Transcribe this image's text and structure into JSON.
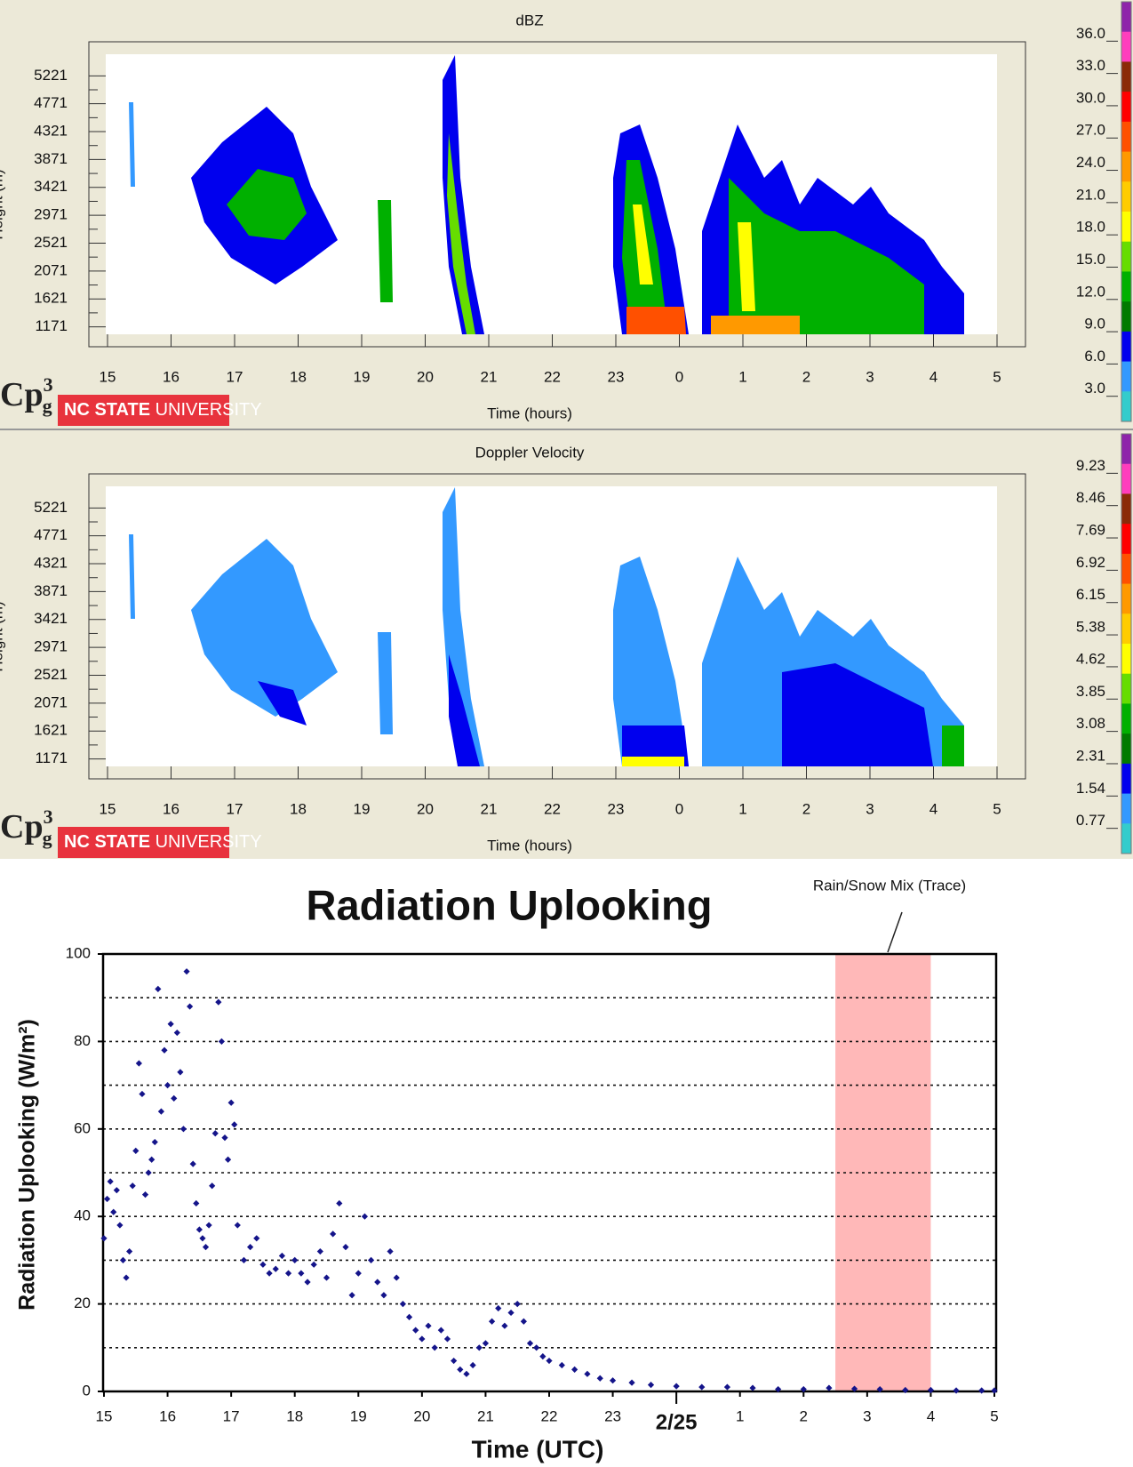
{
  "chart_data": [
    {
      "type": "heatmap",
      "title": "dBZ",
      "xlabel": "Time (hours)",
      "ylabel": "Height (m)",
      "xlim": [
        15,
        29
      ],
      "xticks": [
        15,
        16,
        17,
        18,
        19,
        20,
        21,
        22,
        23,
        {
          "value": 24,
          "label": "0"
        },
        {
          "value": 25,
          "label": "1"
        },
        {
          "value": 26,
          "label": "2"
        },
        {
          "value": 27,
          "label": "3"
        },
        {
          "value": 28,
          "label": "4"
        },
        {
          "value": 29,
          "label": "5"
        }
      ],
      "ylim": [
        1050,
        5570
      ],
      "yticks": [
        1171,
        1621,
        2071,
        2521,
        2971,
        3421,
        3871,
        4321,
        4771,
        5221
      ],
      "colorbar": {
        "clim": [
          0,
          39
        ],
        "ticks": [
          {
            "value": 36,
            "label": "36.0"
          },
          {
            "value": 33,
            "label": "33.0"
          },
          {
            "value": 30,
            "label": "30.0"
          },
          {
            "value": 27,
            "label": "27.0"
          },
          {
            "value": 24,
            "label": "24.0"
          },
          {
            "value": 21,
            "label": "21.0"
          },
          {
            "value": 18,
            "label": "18.0"
          },
          {
            "value": 15,
            "label": "15.0"
          },
          {
            "value": 12,
            "label": "12.0"
          },
          {
            "value": 9,
            "label": "9.0"
          },
          {
            "value": 6,
            "label": "6.0"
          },
          {
            "value": 3,
            "label": "3.0"
          }
        ],
        "colors": [
          "#8e24aa",
          "#ff3dbd",
          "#8b2a08",
          "#ff0000",
          "#ff5000",
          "#ff9900",
          "#ffcc00",
          "#ffff00",
          "#66dd00",
          "#00b000",
          "#007a00",
          "#0000ee",
          "#3399ff",
          "#33cccc"
        ]
      },
      "logo": {
        "main": "Cp",
        "sup": "3",
        "sub": "g"
      },
      "brand": [
        "NC STATE",
        " UNIVERSITY"
      ]
    },
    {
      "type": "heatmap",
      "title": "Doppler Velocity",
      "xlabel": "Time (hours)",
      "ylabel": "Height (m)",
      "xlim": [
        15,
        29
      ],
      "xticks": [
        15,
        16,
        17,
        18,
        19,
        20,
        21,
        22,
        23,
        {
          "value": 24,
          "label": "0"
        },
        {
          "value": 25,
          "label": "1"
        },
        {
          "value": 26,
          "label": "2"
        },
        {
          "value": 27,
          "label": "3"
        },
        {
          "value": 28,
          "label": "4"
        },
        {
          "value": 29,
          "label": "5"
        }
      ],
      "ylim": [
        1050,
        5570
      ],
      "yticks": [
        1171,
        1621,
        2071,
        2521,
        2971,
        3421,
        3871,
        4321,
        4771,
        5221
      ],
      "colorbar": {
        "clim": [
          0,
          10
        ],
        "ticks": [
          9.23,
          8.46,
          7.69,
          6.92,
          6.15,
          5.38,
          4.62,
          3.85,
          3.08,
          2.31,
          1.54,
          0.77
        ],
        "colors": [
          "#8e24aa",
          "#ff3dbd",
          "#8b2a08",
          "#ff0000",
          "#ff5000",
          "#ff9900",
          "#ffcc00",
          "#ffff00",
          "#66dd00",
          "#00b000",
          "#007a00",
          "#0000ee",
          "#3399ff",
          "#33cccc"
        ]
      },
      "logo": {
        "main": "Cp",
        "sup": "3",
        "sub": "g"
      },
      "brand": [
        "NC STATE",
        " UNIVERSITY"
      ]
    },
    {
      "type": "scatter",
      "title": "Radiation Uplooking",
      "xlabel": "Time (UTC)",
      "ylabel": "Radiation Uplooking (W/m²)",
      "color": "#14148a",
      "xlim": [
        15,
        29
      ],
      "xticks": [
        15,
        16,
        17,
        18,
        19,
        20,
        21,
        22,
        23,
        {
          "value": 24,
          "label": "2/25"
        },
        {
          "value": 25,
          "label": "1"
        },
        {
          "value": 26,
          "label": "2"
        },
        {
          "value": 27,
          "label": "3"
        },
        {
          "value": 28,
          "label": "4"
        },
        {
          "value": 29,
          "label": "5"
        }
      ],
      "ylim": [
        0,
        100
      ],
      "yticks": [
        0,
        20,
        40,
        60,
        80,
        100
      ],
      "grid_lines": [
        10,
        20,
        30,
        40,
        50,
        60,
        70,
        80,
        90
      ],
      "shade": {
        "xlim": [
          26.5,
          28
        ],
        "color": "#ffb8b8"
      },
      "annotation": "Rain/Snow Mix  (Trace)",
      "x": [
        15.0,
        15.05,
        15.1,
        15.15,
        15.2,
        15.25,
        15.3,
        15.35,
        15.4,
        15.45,
        15.5,
        15.55,
        15.6,
        15.65,
        15.7,
        15.75,
        15.8,
        15.85,
        15.9,
        15.95,
        16.0,
        16.05,
        16.1,
        16.15,
        16.2,
        16.25,
        16.3,
        16.35,
        16.4,
        16.45,
        16.5,
        16.55,
        16.6,
        16.65,
        16.7,
        16.75,
        16.8,
        16.85,
        16.9,
        16.95,
        17.0,
        17.05,
        17.1,
        17.2,
        17.3,
        17.4,
        17.5,
        17.6,
        17.7,
        17.8,
        17.9,
        18.0,
        18.1,
        18.2,
        18.3,
        18.4,
        18.5,
        18.6,
        18.7,
        18.8,
        18.9,
        19.0,
        19.1,
        19.2,
        19.3,
        19.4,
        19.5,
        19.6,
        19.7,
        19.8,
        19.9,
        20.0,
        20.1,
        20.2,
        20.3,
        20.4,
        20.5,
        20.6,
        20.7,
        20.8,
        20.9,
        21.0,
        21.1,
        21.2,
        21.3,
        21.4,
        21.5,
        21.6,
        21.7,
        21.8,
        21.9,
        22.0,
        22.2,
        22.4,
        22.6,
        22.8,
        23.0,
        23.3,
        23.6,
        24.0,
        24.4,
        24.8,
        25.2,
        25.6,
        26.0,
        26.4,
        26.8,
        27.2,
        27.6,
        28.0,
        28.4,
        28.8,
        29.0
      ],
      "y": [
        35,
        44,
        48,
        41,
        46,
        38,
        30,
        26,
        32,
        47,
        55,
        75,
        68,
        45,
        50,
        53,
        57,
        92,
        64,
        78,
        70,
        84,
        67,
        82,
        73,
        60,
        96,
        88,
        52,
        43,
        37,
        35,
        33,
        38,
        47,
        59,
        89,
        80,
        58,
        53,
        66,
        61,
        38,
        30,
        33,
        35,
        29,
        27,
        28,
        31,
        27,
        30,
        27,
        25,
        29,
        32,
        26,
        36,
        43,
        33,
        22,
        27,
        40,
        30,
        25,
        22,
        32,
        26,
        20,
        17,
        14,
        12,
        15,
        10,
        14,
        12,
        7,
        5,
        4,
        6,
        10,
        11,
        16,
        19,
        15,
        18,
        20,
        16,
        11,
        10,
        8,
        7,
        6,
        5,
        4,
        3,
        2.5,
        2,
        1.5,
        1.2,
        1,
        1,
        0.8,
        0.5,
        0.5,
        0.8,
        0.6,
        0.5,
        0.3,
        0.3,
        0.2,
        0.2,
        0.2
      ]
    }
  ]
}
